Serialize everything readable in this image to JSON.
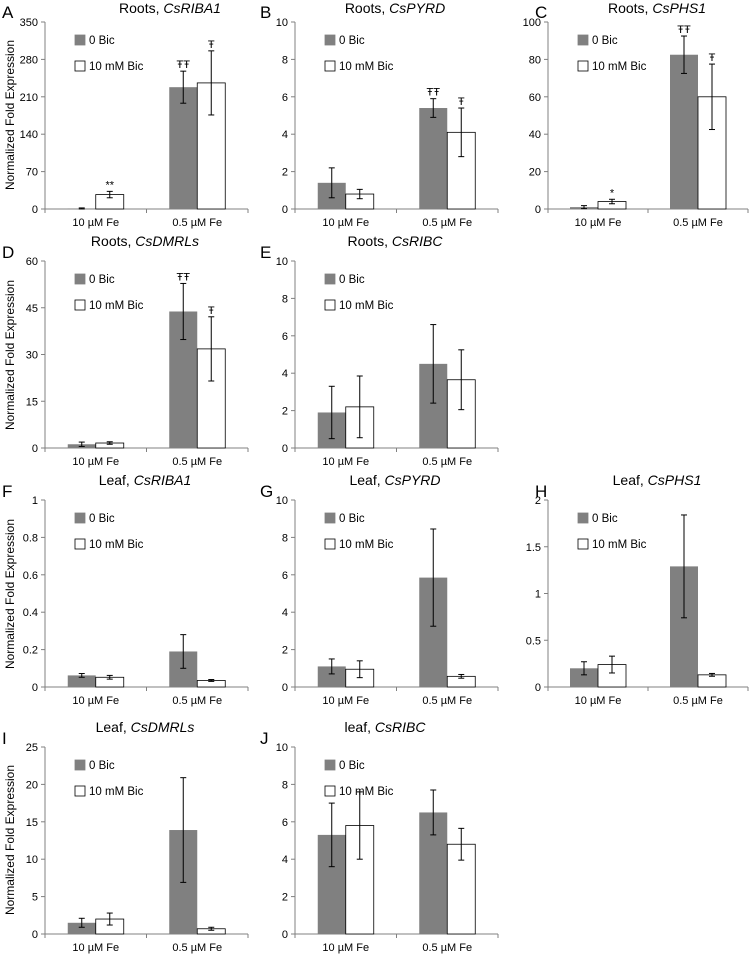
{
  "figure": {
    "y_axis_label": "Normalized Fold Expression",
    "legend": [
      "0 Bic",
      "10 mM Bic"
    ],
    "colors": {
      "series0": "#808080",
      "series1": "#ffffff",
      "edge": "#000000",
      "axis": "#808080"
    }
  },
  "chart_data": [
    {
      "panel": "A",
      "type": "bar",
      "title_prefix": "Roots, ",
      "title_gene": "CsRIBA1",
      "categories": [
        "10 µM Fe",
        "0.5 µM Fe"
      ],
      "ylim": [
        0,
        350
      ],
      "yticks": [
        0,
        70,
        140,
        210,
        280,
        350
      ],
      "ylabel": "Normalized Fold Expression",
      "series": [
        {
          "name": "0 Bic",
          "values": [
            1,
            228
          ],
          "errors": [
            1,
            30
          ]
        },
        {
          "name": "10 mM Bic",
          "values": [
            27,
            236
          ],
          "errors": [
            6,
            60
          ]
        }
      ],
      "annotations": [
        {
          "category": 0,
          "series": 1,
          "text": "**"
        },
        {
          "category": 1,
          "series": 0,
          "text": "ŦŦ"
        },
        {
          "category": 1,
          "series": 1,
          "text": "Ŧ"
        }
      ]
    },
    {
      "panel": "B",
      "type": "bar",
      "title_prefix": "Roots, ",
      "title_gene": "CsPYRD",
      "categories": [
        "10 µM Fe",
        "0.5 µM Fe"
      ],
      "ylim": [
        0,
        10
      ],
      "yticks": [
        0,
        2,
        4,
        6,
        8,
        10
      ],
      "ylabel": "",
      "series": [
        {
          "name": "0 Bic",
          "values": [
            1.4,
            5.4
          ],
          "errors": [
            0.8,
            0.5
          ]
        },
        {
          "name": "10 mM Bic",
          "values": [
            0.8,
            4.1
          ],
          "errors": [
            0.25,
            1.3
          ]
        }
      ],
      "annotations": [
        {
          "category": 1,
          "series": 0,
          "text": "ŦŦ"
        },
        {
          "category": 1,
          "series": 1,
          "text": "Ŧ"
        }
      ]
    },
    {
      "panel": "C",
      "type": "bar",
      "title_prefix": "Roots, ",
      "title_gene": "CsPHS1",
      "categories": [
        "10 µM Fe",
        "0.5 µM Fe"
      ],
      "ylim": [
        0,
        100
      ],
      "yticks": [
        0,
        20,
        40,
        60,
        80,
        100
      ],
      "ylabel": "",
      "series": [
        {
          "name": "0 Bic",
          "values": [
            1,
            82.5
          ],
          "errors": [
            0.8,
            10
          ]
        },
        {
          "name": "10 mM Bic",
          "values": [
            4,
            60
          ],
          "errors": [
            1.2,
            17.5
          ]
        }
      ],
      "annotations": [
        {
          "category": 0,
          "series": 1,
          "text": "*"
        },
        {
          "category": 1,
          "series": 0,
          "text": "ŦŦ"
        },
        {
          "category": 1,
          "series": 1,
          "text": "Ŧ"
        }
      ]
    },
    {
      "panel": "D",
      "type": "bar",
      "title_prefix": "Roots, ",
      "title_gene": "CsDMRLs",
      "categories": [
        "10 µM Fe",
        "0.5 µM Fe"
      ],
      "ylim": [
        0,
        60
      ],
      "yticks": [
        0,
        15,
        30,
        45,
        60
      ],
      "ylabel": "Normalized Fold Expression",
      "series": [
        {
          "name": "0 Bic",
          "values": [
            1.2,
            43.8
          ],
          "errors": [
            0.7,
            9
          ]
        },
        {
          "name": "10 mM Bic",
          "values": [
            1.6,
            31.8
          ],
          "errors": [
            0.4,
            10.3
          ]
        }
      ],
      "annotations": [
        {
          "category": 1,
          "series": 0,
          "text": "ŦŦ"
        },
        {
          "category": 1,
          "series": 1,
          "text": "Ŧ"
        }
      ]
    },
    {
      "panel": "E",
      "type": "bar",
      "title_prefix": "Roots, ",
      "title_gene": "CsRIBC",
      "categories": [
        "10 µM Fe",
        "0.5 µM Fe"
      ],
      "ylim": [
        0,
        10
      ],
      "yticks": [
        0,
        2,
        4,
        6,
        8,
        10
      ],
      "ylabel": "",
      "series": [
        {
          "name": "0 Bic",
          "values": [
            1.9,
            4.5
          ],
          "errors": [
            1.4,
            2.1
          ]
        },
        {
          "name": "10 mM Bic",
          "values": [
            2.2,
            3.65
          ],
          "errors": [
            1.65,
            1.6
          ]
        }
      ],
      "annotations": []
    },
    {
      "panel": "F",
      "type": "bar",
      "title_prefix": "Leaf, ",
      "title_gene": "CsRIBA1",
      "categories": [
        "10 µM Fe",
        "0.5 µM Fe"
      ],
      "ylim": [
        0,
        1
      ],
      "yticks": [
        0,
        0.2,
        0.4,
        0.6,
        0.8,
        1
      ],
      "ylabel": "Normalized Fold Expression",
      "series": [
        {
          "name": "0 Bic",
          "values": [
            0.062,
            0.19
          ],
          "errors": [
            0.01,
            0.09
          ]
        },
        {
          "name": "10 mM Bic",
          "values": [
            0.052,
            0.035
          ],
          "errors": [
            0.01,
            0.005
          ]
        }
      ],
      "annotations": []
    },
    {
      "panel": "G",
      "type": "bar",
      "title_prefix": "Leaf, ",
      "title_gene": "CsPYRD",
      "categories": [
        "10 µM Fe",
        "0.5 µM Fe"
      ],
      "ylim": [
        0,
        10
      ],
      "yticks": [
        0,
        2,
        4,
        6,
        8,
        10
      ],
      "ylabel": "",
      "series": [
        {
          "name": "0 Bic",
          "values": [
            1.1,
            5.85
          ],
          "errors": [
            0.4,
            2.6
          ]
        },
        {
          "name": "10 mM Bic",
          "values": [
            0.95,
            0.57
          ],
          "errors": [
            0.45,
            0.1
          ]
        }
      ],
      "annotations": []
    },
    {
      "panel": "H",
      "type": "bar",
      "title_prefix": "Leaf, ",
      "title_gene": "CsPHS1",
      "categories": [
        "10 µM Fe",
        "0.5 µM Fe"
      ],
      "ylim": [
        0,
        2
      ],
      "yticks": [
        0,
        0.5,
        1,
        1.5,
        2
      ],
      "ylabel": "",
      "series": [
        {
          "name": "0 Bic",
          "values": [
            0.2,
            1.29
          ],
          "errors": [
            0.07,
            0.55
          ]
        },
        {
          "name": "10 mM Bic",
          "values": [
            0.24,
            0.13
          ],
          "errors": [
            0.09,
            0.015
          ]
        }
      ],
      "annotations": []
    },
    {
      "panel": "I",
      "type": "bar",
      "title_prefix": "Leaf, ",
      "title_gene": "CsDMRLs",
      "categories": [
        "10 µM Fe",
        "0.5 µM Fe"
      ],
      "ylim": [
        0,
        25
      ],
      "yticks": [
        0,
        5,
        10,
        15,
        20,
        25
      ],
      "ylabel": "Normalized Fold Expression",
      "series": [
        {
          "name": "0 Bic",
          "values": [
            1.5,
            13.9
          ],
          "errors": [
            0.6,
            7
          ]
        },
        {
          "name": "10 mM Bic",
          "values": [
            2,
            0.7
          ],
          "errors": [
            0.8,
            0.2
          ]
        }
      ],
      "annotations": []
    },
    {
      "panel": "J",
      "type": "bar",
      "title_prefix": "leaf, ",
      "title_gene": "CsRIBC",
      "categories": [
        "10 µM Fe",
        "0.5 µM Fe"
      ],
      "ylim": [
        0,
        10
      ],
      "yticks": [
        0,
        2,
        4,
        6,
        8,
        10
      ],
      "ylabel": "",
      "series": [
        {
          "name": "0 Bic",
          "values": [
            5.3,
            6.5
          ],
          "errors": [
            1.7,
            1.2
          ]
        },
        {
          "name": "10 mM Bic",
          "values": [
            5.8,
            4.8
          ],
          "errors": [
            1.8,
            0.85
          ]
        }
      ],
      "annotations": []
    }
  ]
}
